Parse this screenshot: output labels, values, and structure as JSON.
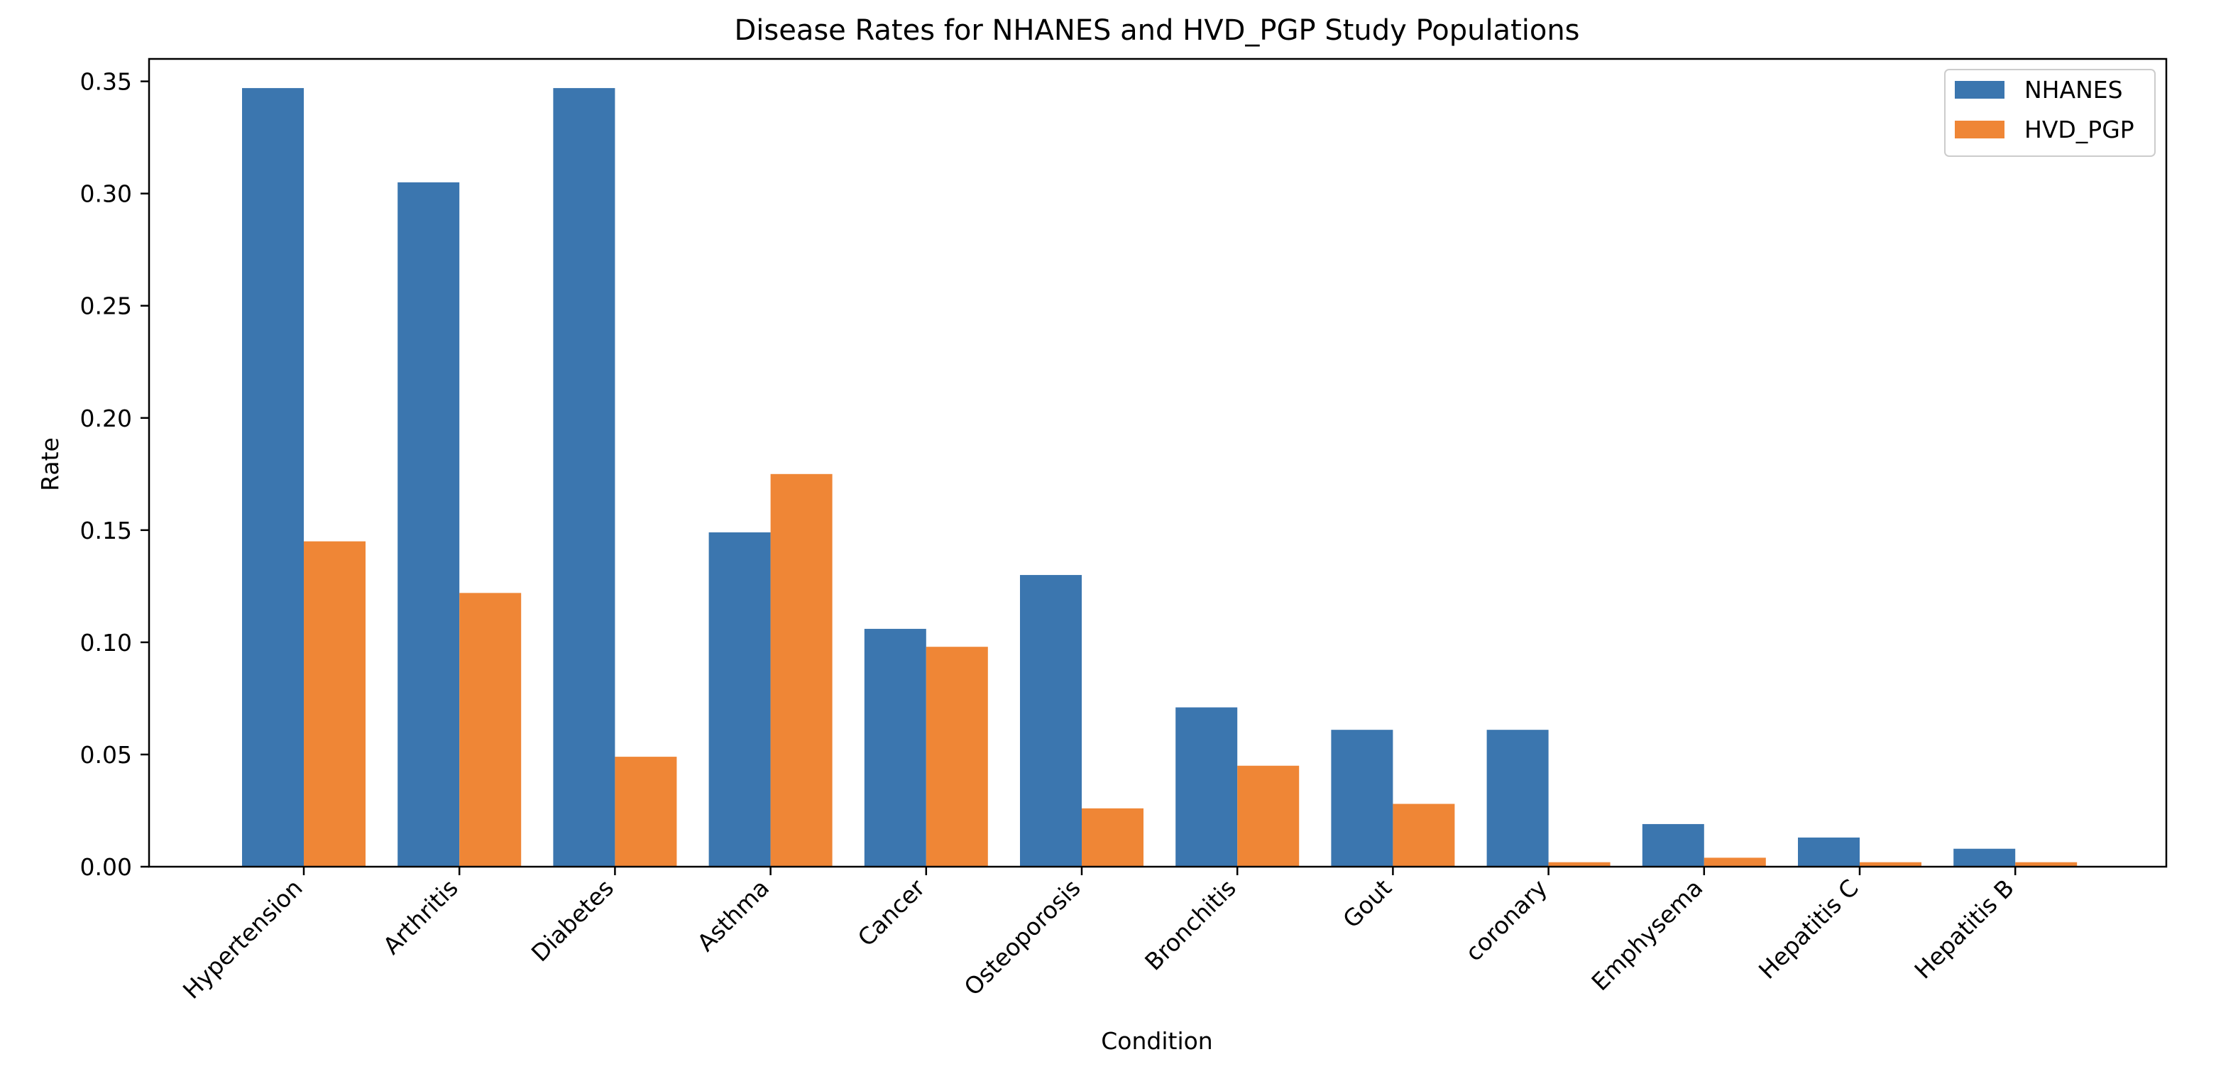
{
  "colors": {
    "nhanes": "#3b76af",
    "hvd_pgp": "#ef8636",
    "frame": "#000000",
    "legend_border": "#cccccc"
  },
  "chart_data": {
    "type": "bar",
    "title": "Disease Rates for NHANES and HVD_PGP Study Populations",
    "xlabel": "Condition",
    "ylabel": "Rate",
    "ylim": [
      0,
      0.36
    ],
    "yticks": [
      "0.00",
      "0.05",
      "0.10",
      "0.15",
      "0.20",
      "0.25",
      "0.30",
      "0.35"
    ],
    "ytick_values": [
      0,
      0.05,
      0.1,
      0.15,
      0.2,
      0.25,
      0.3,
      0.35
    ],
    "grid": false,
    "legend_position": "top-right",
    "categories": [
      "Hypertension",
      "Arthritis",
      "Diabetes",
      "Asthma",
      "Cancer",
      "Osteoporosis",
      "Bronchitis",
      "Gout",
      "coronary",
      "Emphysema",
      "Hepatitis C",
      "Hepatitis B"
    ],
    "series": [
      {
        "name": "NHANES",
        "color": "#3b76af",
        "values": [
          0.347,
          0.305,
          0.347,
          0.149,
          0.106,
          0.13,
          0.071,
          0.061,
          0.061,
          0.019,
          0.013,
          0.008
        ]
      },
      {
        "name": "HVD_PGP",
        "color": "#ef8636",
        "values": [
          0.145,
          0.122,
          0.049,
          0.175,
          0.098,
          0.026,
          0.045,
          0.028,
          0.002,
          0.004,
          0.002,
          0.002
        ]
      }
    ]
  }
}
